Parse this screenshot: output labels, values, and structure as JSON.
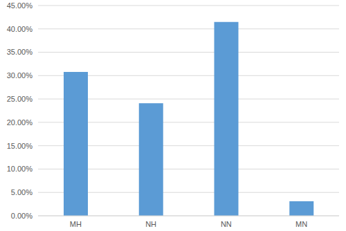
{
  "chart_data": {
    "type": "bar",
    "categories": [
      "MH",
      "NH",
      "NN",
      "MN"
    ],
    "values": [
      30.8,
      24.1,
      41.5,
      3.1
    ],
    "color": "#5b9bd5",
    "ylim": [
      0,
      45
    ],
    "yticks": [
      {
        "value": 0,
        "label": "0.00%"
      },
      {
        "value": 5,
        "label": "5.00%"
      },
      {
        "value": 10,
        "label": "10.00%"
      },
      {
        "value": 15,
        "label": "15.00%"
      },
      {
        "value": 20,
        "label": "20.00%"
      },
      {
        "value": 25,
        "label": "25.00%"
      },
      {
        "value": 30,
        "label": "30.00%"
      },
      {
        "value": 35,
        "label": "35.00%"
      },
      {
        "value": 40,
        "label": "40.00%"
      },
      {
        "value": 45,
        "label": "45.00%"
      }
    ],
    "grid": true
  }
}
